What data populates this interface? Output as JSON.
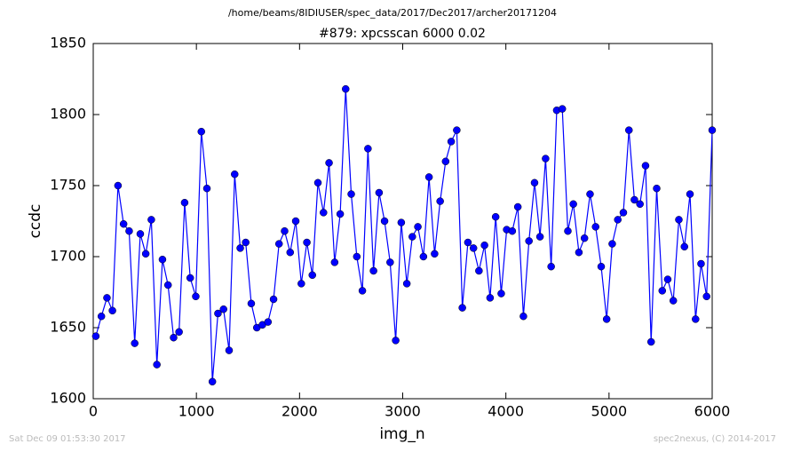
{
  "chart_data": {
    "type": "line",
    "suptitle": "/home/beams/8IDIUSER/spec_data/2017/Dec2017/archer20171204",
    "title": "#879: xpcsscan 6000 0.02",
    "x_label": "img_n",
    "y_label": "ccdc",
    "footer_left": "Sat Dec 09 01:53:30 2017",
    "footer_right": "spec2nexus, (C) 2014-2017",
    "xlim": [
      0,
      6000
    ],
    "ylim": [
      1600,
      1850
    ],
    "xticks": [
      0,
      1000,
      2000,
      3000,
      4000,
      5000,
      6000
    ],
    "yticks": [
      1600,
      1650,
      1700,
      1750,
      1800,
      1850
    ],
    "x": [
      25,
      79,
      133,
      186,
      240,
      294,
      348,
      402,
      456,
      509,
      563,
      617,
      671,
      725,
      779,
      832,
      886,
      940,
      994,
      1048,
      1102,
      1155,
      1209,
      1263,
      1317,
      1371,
      1425,
      1478,
      1532,
      1586,
      1640,
      1694,
      1748,
      1801,
      1855,
      1909,
      1963,
      2017,
      2071,
      2124,
      2178,
      2232,
      2286,
      2340,
      2394,
      2447,
      2501,
      2555,
      2609,
      2663,
      2717,
      2771,
      2824,
      2878,
      2932,
      2986,
      3040,
      3093,
      3147,
      3201,
      3255,
      3309,
      3363,
      3416,
      3470,
      3524,
      3578,
      3632,
      3686,
      3739,
      3793,
      3847,
      3901,
      3955,
      4008,
      4062,
      4116,
      4170,
      4224,
      4278,
      4331,
      4385,
      4439,
      4493,
      4547,
      4601,
      4654,
      4708,
      4762,
      4816,
      4870,
      4924,
      4977,
      5031,
      5085,
      5139,
      5193,
      5246,
      5300,
      5354,
      5408,
      5462,
      5516,
      5569,
      5623,
      5677,
      5731,
      5785,
      5839,
      5892,
      5946,
      6000
    ],
    "series": [
      {
        "color": "#0000ff",
        "values": [
          1644,
          1658,
          1671,
          1662,
          1750,
          1723,
          1718,
          1639,
          1716,
          1702,
          1726,
          1624,
          1698,
          1680,
          1643,
          1647,
          1738,
          1685,
          1672,
          1788,
          1748,
          1612,
          1660,
          1663,
          1634,
          1758,
          1706,
          1710,
          1667,
          1650,
          1652,
          1654,
          1670,
          1709,
          1718,
          1703,
          1725,
          1681,
          1710,
          1687,
          1752,
          1731,
          1766,
          1696,
          1730,
          1818,
          1744,
          1700,
          1676,
          1776,
          1690,
          1745,
          1725,
          1696,
          1641,
          1724,
          1681,
          1714,
          1721,
          1700,
          1756,
          1702,
          1739,
          1767,
          1781,
          1789,
          1664,
          1710,
          1706,
          1690,
          1708,
          1671,
          1728,
          1674,
          1719,
          1718,
          1735,
          1658,
          1711,
          1752,
          1714,
          1769,
          1693,
          1803,
          1804,
          1718,
          1737,
          1703,
          1713,
          1744,
          1721,
          1693,
          1656,
          1709,
          1726,
          1731,
          1789,
          1740,
          1737,
          1764,
          1640,
          1748,
          1676,
          1684,
          1669,
          1726,
          1707,
          1744,
          1656,
          1695,
          1672,
          1789
        ]
      }
    ]
  }
}
